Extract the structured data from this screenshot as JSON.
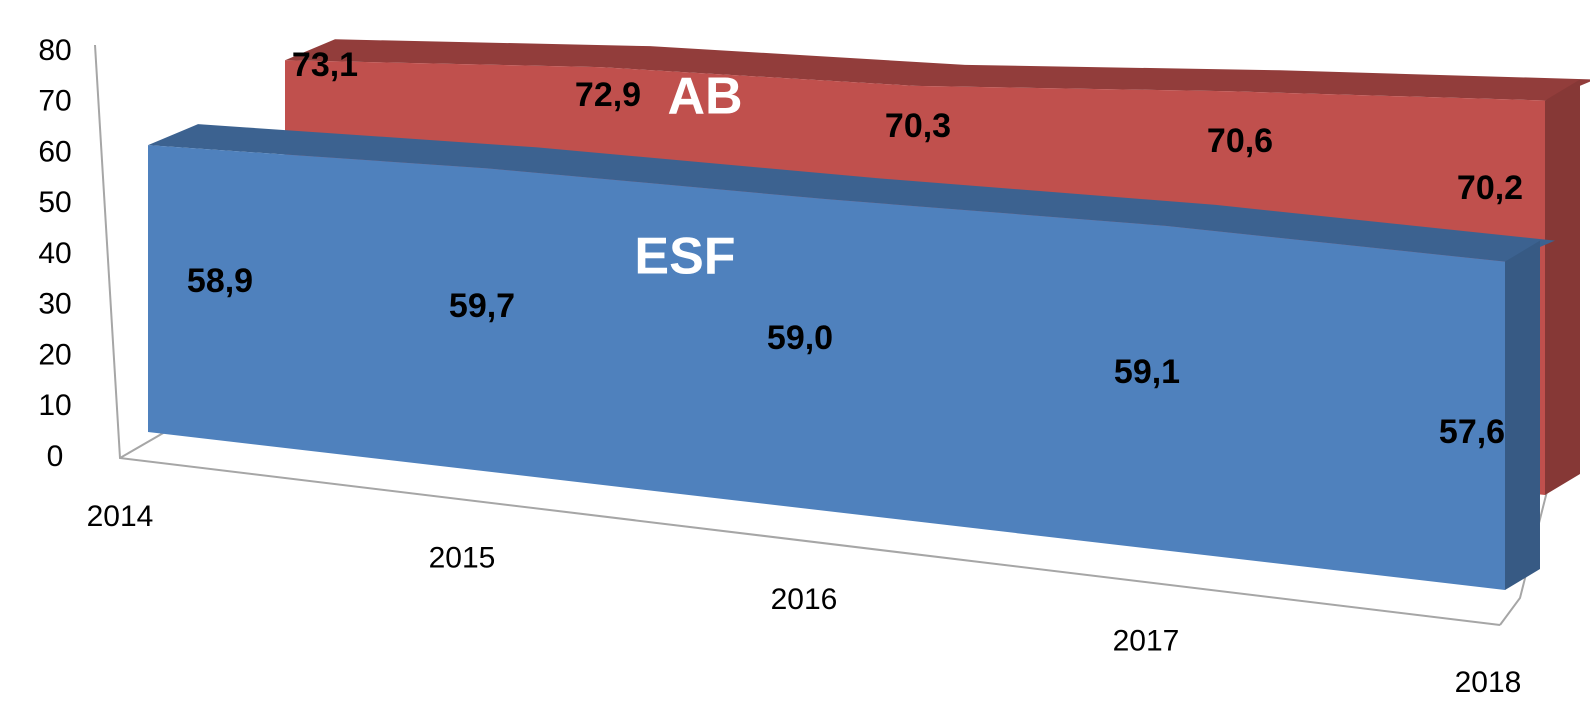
{
  "chart_data": {
    "type": "area3d",
    "categories": [
      "2014",
      "2015",
      "2016",
      "2017",
      "2018"
    ],
    "series": [
      {
        "name": "AB",
        "color": "#c0504d",
        "values": [
          73.1,
          72.9,
          70.3,
          70.6,
          70.2
        ],
        "value_labels": [
          "73,1",
          "72,9",
          "70,3",
          "70,6",
          "70,2"
        ]
      },
      {
        "name": "ESF",
        "color": "#4f81bd",
        "values": [
          58.9,
          59.7,
          59.0,
          59.1,
          57.6
        ],
        "value_labels": [
          "58,9",
          "59,7",
          "59,0",
          "59,1",
          "57,6"
        ]
      }
    ],
    "ylim": [
      0,
      80
    ],
    "yticks": [
      0,
      10,
      20,
      30,
      40,
      50,
      60,
      70,
      80
    ],
    "grid": false
  }
}
